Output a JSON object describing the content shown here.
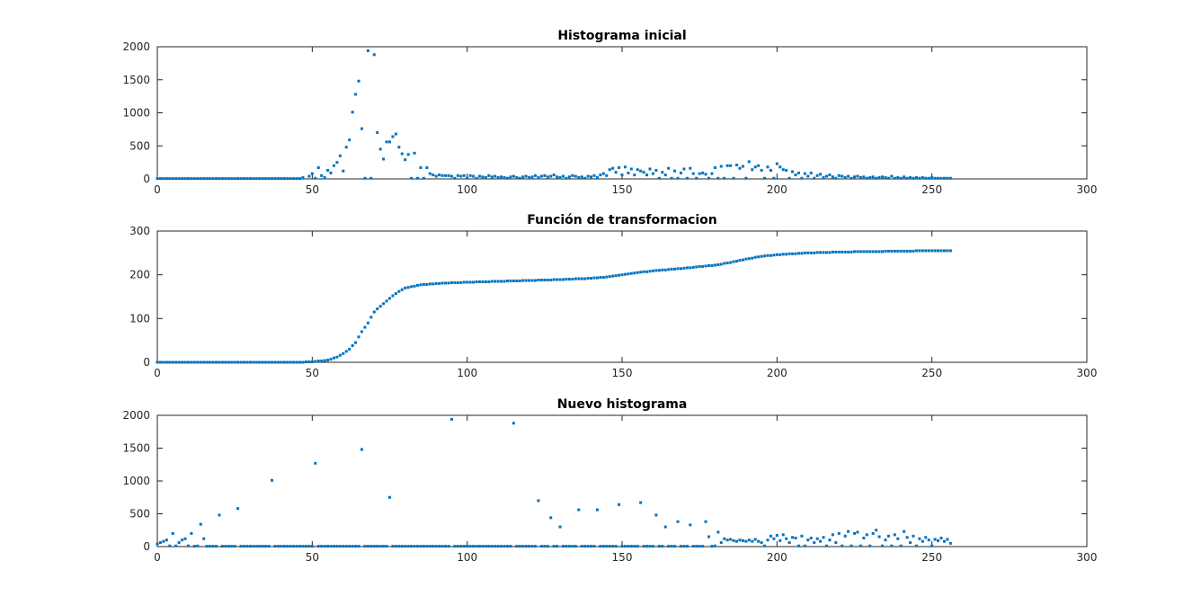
{
  "chart_data": [
    {
      "type": "scatter",
      "title": "Histograma inicial",
      "xlim": [
        0,
        300
      ],
      "ylim": [
        0,
        2000
      ],
      "xticks": [
        "0",
        "50",
        "100",
        "150",
        "200",
        "250",
        "300"
      ],
      "yticks": [
        "0",
        "500",
        "1000",
        "1500",
        "2000"
      ],
      "series": [
        {
          "color": "#0072bd",
          "x": [],
          "y": []
        }
      ],
      "notable_points": [
        [
          47,
          20
        ],
        [
          49,
          40
        ],
        [
          50,
          80
        ],
        [
          51,
          10
        ],
        [
          52,
          170
        ],
        [
          53,
          50
        ],
        [
          54,
          20
        ],
        [
          55,
          130
        ],
        [
          56,
          90
        ],
        [
          57,
          200
        ],
        [
          58,
          250
        ],
        [
          59,
          350
        ],
        [
          60,
          120
        ],
        [
          61,
          480
        ],
        [
          62,
          590
        ],
        [
          63,
          1010
        ],
        [
          64,
          1280
        ],
        [
          65,
          1480
        ],
        [
          66,
          760
        ],
        [
          67,
          10
        ],
        [
          68,
          1940
        ],
        [
          69,
          10
        ],
        [
          70,
          1880
        ],
        [
          71,
          700
        ],
        [
          72,
          450
        ],
        [
          73,
          300
        ],
        [
          74,
          560
        ],
        [
          75,
          560
        ],
        [
          76,
          640
        ],
        [
          77,
          680
        ],
        [
          78,
          480
        ],
        [
          79,
          380
        ],
        [
          80,
          290
        ],
        [
          81,
          370
        ],
        [
          82,
          10
        ],
        [
          83,
          390
        ],
        [
          84,
          10
        ],
        [
          85,
          170
        ],
        [
          86,
          10
        ],
        [
          87,
          170
        ],
        [
          88,
          80
        ],
        [
          89,
          60
        ],
        [
          90,
          40
        ],
        [
          91,
          60
        ],
        [
          92,
          50
        ],
        [
          93,
          50
        ],
        [
          94,
          50
        ],
        [
          95,
          40
        ],
        [
          96,
          10
        ],
        [
          97,
          50
        ],
        [
          98,
          40
        ],
        [
          99,
          50
        ],
        [
          100,
          10
        ],
        [
          101,
          50
        ],
        [
          102,
          40
        ],
        [
          103,
          10
        ],
        [
          104,
          40
        ],
        [
          105,
          30
        ],
        [
          106,
          20
        ],
        [
          107,
          50
        ],
        [
          108,
          30
        ],
        [
          109,
          40
        ],
        [
          110,
          20
        ],
        [
          111,
          30
        ],
        [
          112,
          20
        ],
        [
          113,
          10
        ],
        [
          114,
          30
        ],
        [
          115,
          40
        ],
        [
          116,
          20
        ],
        [
          117,
          10
        ],
        [
          118,
          30
        ],
        [
          119,
          40
        ],
        [
          120,
          20
        ],
        [
          121,
          30
        ],
        [
          122,
          50
        ],
        [
          123,
          20
        ],
        [
          124,
          40
        ],
        [
          125,
          50
        ],
        [
          126,
          30
        ],
        [
          127,
          40
        ],
        [
          128,
          60
        ],
        [
          129,
          30
        ],
        [
          130,
          20
        ],
        [
          131,
          40
        ],
        [
          132,
          10
        ],
        [
          133,
          30
        ],
        [
          134,
          50
        ],
        [
          135,
          40
        ],
        [
          136,
          20
        ],
        [
          137,
          30
        ],
        [
          138,
          10
        ],
        [
          139,
          40
        ],
        [
          140,
          30
        ],
        [
          141,
          50
        ],
        [
          142,
          20
        ],
        [
          143,
          60
        ],
        [
          144,
          80
        ],
        [
          145,
          50
        ],
        [
          146,
          140
        ],
        [
          147,
          160
        ],
        [
          148,
          100
        ],
        [
          149,
          170
        ],
        [
          150,
          60
        ],
        [
          151,
          180
        ],
        [
          152,
          90
        ],
        [
          153,
          150
        ],
        [
          154,
          60
        ],
        [
          155,
          140
        ],
        [
          156,
          120
        ],
        [
          157,
          100
        ],
        [
          158,
          60
        ],
        [
          159,
          150
        ],
        [
          160,
          80
        ],
        [
          161,
          130
        ],
        [
          162,
          10
        ],
        [
          163,
          100
        ],
        [
          164,
          60
        ],
        [
          165,
          160
        ],
        [
          166,
          10
        ],
        [
          167,
          120
        ],
        [
          168,
          10
        ],
        [
          169,
          90
        ],
        [
          170,
          150
        ],
        [
          171,
          10
        ],
        [
          172,
          160
        ],
        [
          173,
          80
        ],
        [
          174,
          10
        ],
        [
          175,
          80
        ],
        [
          176,
          90
        ],
        [
          177,
          70
        ],
        [
          178,
          10
        ],
        [
          179,
          80
        ],
        [
          180,
          170
        ],
        [
          181,
          10
        ],
        [
          182,
          190
        ],
        [
          183,
          10
        ],
        [
          184,
          200
        ],
        [
          185,
          200
        ],
        [
          186,
          10
        ],
        [
          187,
          210
        ],
        [
          188,
          160
        ],
        [
          189,
          190
        ],
        [
          190,
          10
        ],
        [
          191,
          260
        ],
        [
          192,
          140
        ],
        [
          193,
          180
        ],
        [
          194,
          200
        ],
        [
          195,
          130
        ],
        [
          196,
          10
        ],
        [
          197,
          180
        ],
        [
          198,
          130
        ],
        [
          199,
          10
        ],
        [
          200,
          230
        ],
        [
          201,
          180
        ],
        [
          202,
          140
        ],
        [
          203,
          130
        ],
        [
          204,
          10
        ],
        [
          205,
          110
        ],
        [
          206,
          60
        ],
        [
          207,
          90
        ],
        [
          208,
          10
        ],
        [
          209,
          80
        ],
        [
          210,
          40
        ],
        [
          211,
          90
        ],
        [
          212,
          10
        ],
        [
          213,
          50
        ],
        [
          214,
          70
        ],
        [
          215,
          20
        ],
        [
          216,
          40
        ],
        [
          217,
          60
        ],
        [
          218,
          30
        ],
        [
          219,
          10
        ],
        [
          220,
          50
        ],
        [
          221,
          40
        ],
        [
          222,
          20
        ],
        [
          223,
          40
        ],
        [
          224,
          10
        ],
        [
          225,
          30
        ],
        [
          226,
          40
        ],
        [
          227,
          20
        ],
        [
          228,
          30
        ],
        [
          229,
          10
        ],
        [
          230,
          20
        ],
        [
          231,
          30
        ],
        [
          232,
          10
        ],
        [
          233,
          20
        ],
        [
          234,
          30
        ],
        [
          235,
          20
        ],
        [
          236,
          10
        ],
        [
          237,
          40
        ],
        [
          238,
          10
        ],
        [
          239,
          20
        ],
        [
          240,
          10
        ],
        [
          241,
          30
        ],
        [
          242,
          10
        ],
        [
          243,
          20
        ],
        [
          244,
          10
        ],
        [
          245,
          20
        ],
        [
          246,
          10
        ],
        [
          247,
          20
        ],
        [
          248,
          10
        ],
        [
          249,
          10
        ],
        [
          250,
          20
        ],
        [
          251,
          10
        ],
        [
          252,
          10
        ],
        [
          253,
          10
        ],
        [
          254,
          10
        ],
        [
          255,
          10
        ],
        [
          256,
          10
        ]
      ],
      "baseline": {
        "from": 0,
        "to": 47,
        "value": 5
      }
    },
    {
      "type": "scatter",
      "title": "Función de transformacion",
      "xlim": [
        0,
        300
      ],
      "ylim": [
        0,
        300
      ],
      "xticks": [
        "0",
        "50",
        "100",
        "150",
        "200",
        "250",
        "300"
      ],
      "yticks": [
        "0",
        "100",
        "200",
        "300"
      ],
      "series": [
        {
          "color": "#0072bd",
          "x": [],
          "y": []
        }
      ],
      "curve_knots": [
        [
          0,
          0
        ],
        [
          45,
          0
        ],
        [
          50,
          1
        ],
        [
          55,
          5
        ],
        [
          58,
          12
        ],
        [
          60,
          20
        ],
        [
          62,
          30
        ],
        [
          64,
          45
        ],
        [
          66,
          70
        ],
        [
          68,
          90
        ],
        [
          70,
          115
        ],
        [
          72,
          128
        ],
        [
          74,
          140
        ],
        [
          76,
          152
        ],
        [
          78,
          162
        ],
        [
          80,
          170
        ],
        [
          85,
          177
        ],
        [
          90,
          180
        ],
        [
          100,
          183
        ],
        [
          110,
          185
        ],
        [
          120,
          187
        ],
        [
          130,
          189
        ],
        [
          140,
          192
        ],
        [
          145,
          195
        ],
        [
          150,
          200
        ],
        [
          155,
          205
        ],
        [
          160,
          209
        ],
        [
          170,
          215
        ],
        [
          180,
          222
        ],
        [
          185,
          228
        ],
        [
          190,
          236
        ],
        [
          195,
          242
        ],
        [
          200,
          246
        ],
        [
          210,
          250
        ],
        [
          220,
          252
        ],
        [
          230,
          253
        ],
        [
          240,
          254
        ],
        [
          250,
          255
        ],
        [
          256,
          255
        ]
      ]
    },
    {
      "type": "scatter",
      "title": "Nuevo histograma",
      "xlim": [
        0,
        300
      ],
      "ylim": [
        0,
        2000
      ],
      "xticks": [
        "0",
        "50",
        "100",
        "150",
        "200",
        "250",
        "300"
      ],
      "yticks": [
        "0",
        "500",
        "1000",
        "1500",
        "2000"
      ],
      "series": [
        {
          "color": "#0072bd",
          "x": [],
          "y": []
        }
      ],
      "notable_points": [
        [
          0,
          40
        ],
        [
          1,
          60
        ],
        [
          2,
          80
        ],
        [
          3,
          100
        ],
        [
          4,
          10
        ],
        [
          5,
          200
        ],
        [
          6,
          10
        ],
        [
          7,
          60
        ],
        [
          8,
          100
        ],
        [
          9,
          120
        ],
        [
          10,
          10
        ],
        [
          11,
          200
        ],
        [
          13,
          10
        ],
        [
          14,
          340
        ],
        [
          15,
          120
        ],
        [
          20,
          480
        ],
        [
          26,
          580
        ],
        [
          37,
          1010
        ],
        [
          51,
          1270
        ],
        [
          66,
          1480
        ],
        [
          75,
          750
        ],
        [
          95,
          1940
        ],
        [
          115,
          1880
        ],
        [
          123,
          700
        ],
        [
          127,
          440
        ],
        [
          130,
          300
        ],
        [
          136,
          560
        ],
        [
          142,
          560
        ],
        [
          149,
          640
        ],
        [
          156,
          670
        ],
        [
          161,
          480
        ],
        [
          164,
          300
        ],
        [
          168,
          380
        ],
        [
          172,
          330
        ],
        [
          177,
          380
        ],
        [
          178,
          150
        ],
        [
          180,
          10
        ],
        [
          181,
          220
        ],
        [
          182,
          60
        ],
        [
          183,
          120
        ],
        [
          184,
          100
        ],
        [
          185,
          110
        ],
        [
          186,
          90
        ],
        [
          187,
          80
        ],
        [
          188,
          100
        ],
        [
          189,
          90
        ],
        [
          190,
          80
        ],
        [
          191,
          100
        ],
        [
          192,
          80
        ],
        [
          193,
          110
        ],
        [
          194,
          80
        ],
        [
          195,
          60
        ],
        [
          196,
          10
        ],
        [
          197,
          100
        ],
        [
          198,
          160
        ],
        [
          199,
          120
        ],
        [
          200,
          170
        ],
        [
          201,
          90
        ],
        [
          202,
          180
        ],
        [
          203,
          120
        ],
        [
          204,
          60
        ],
        [
          205,
          140
        ],
        [
          206,
          130
        ],
        [
          207,
          10
        ],
        [
          208,
          160
        ],
        [
          209,
          10
        ],
        [
          210,
          100
        ],
        [
          211,
          130
        ],
        [
          212,
          60
        ],
        [
          213,
          120
        ],
        [
          214,
          80
        ],
        [
          215,
          140
        ],
        [
          216,
          10
        ],
        [
          217,
          100
        ],
        [
          218,
          180
        ],
        [
          219,
          60
        ],
        [
          220,
          200
        ],
        [
          221,
          10
        ],
        [
          222,
          160
        ],
        [
          223,
          230
        ],
        [
          224,
          10
        ],
        [
          225,
          200
        ],
        [
          226,
          220
        ],
        [
          227,
          10
        ],
        [
          228,
          130
        ],
        [
          229,
          180
        ],
        [
          230,
          10
        ],
        [
          231,
          200
        ],
        [
          232,
          250
        ],
        [
          233,
          150
        ],
        [
          234,
          10
        ],
        [
          235,
          100
        ],
        [
          236,
          160
        ],
        [
          237,
          10
        ],
        [
          238,
          180
        ],
        [
          239,
          120
        ],
        [
          240,
          10
        ],
        [
          241,
          230
        ],
        [
          242,
          140
        ],
        [
          243,
          60
        ],
        [
          244,
          160
        ],
        [
          245,
          10
        ],
        [
          246,
          120
        ],
        [
          247,
          80
        ],
        [
          248,
          140
        ],
        [
          249,
          100
        ],
        [
          250,
          10
        ],
        [
          251,
          110
        ],
        [
          252,
          90
        ],
        [
          253,
          130
        ],
        [
          254,
          80
        ],
        [
          255,
          110
        ],
        [
          256,
          50
        ]
      ],
      "baseline": {
        "from": 0,
        "to": 180,
        "value": 5
      }
    }
  ]
}
